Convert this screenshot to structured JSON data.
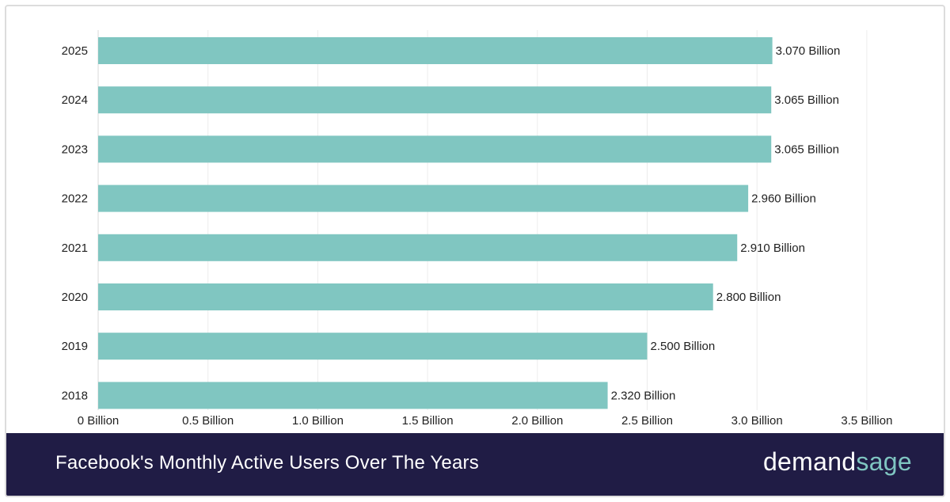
{
  "chart_data": {
    "type": "bar",
    "orientation": "horizontal",
    "categories": [
      "2025",
      "2024",
      "2023",
      "2022",
      "2021",
      "2020",
      "2019",
      "2018"
    ],
    "values": [
      3.07,
      3.065,
      3.065,
      2.96,
      2.91,
      2.8,
      2.5,
      2.32
    ],
    "value_labels": [
      "3.070 Billion",
      "3.065 Billion",
      "3.065 Billion",
      "2.960 Billion",
      "2.910 Billion",
      "2.800 Billion",
      "2.500 Billion",
      "2.320 Billion"
    ],
    "x_ticks": [
      0,
      0.5,
      1.0,
      1.5,
      2.0,
      2.5,
      3.0,
      3.5
    ],
    "x_tick_labels": [
      "0 Billion",
      "0.5 Billion",
      "1.0 Billion",
      "1.5 Billion",
      "2.0 Billion",
      "2.5 Billion",
      "3.0 Billion",
      "3.5 Billion"
    ],
    "xlim": [
      0,
      3.5
    ],
    "grid": true,
    "bar_color": "#80c6c1",
    "title": "",
    "xlabel": "",
    "ylabel": ""
  },
  "footer": {
    "title": "Facebook's Monthly Active Users Over The Years",
    "logo_part1": "demand",
    "logo_part2": "sage",
    "background": "#201c45"
  }
}
